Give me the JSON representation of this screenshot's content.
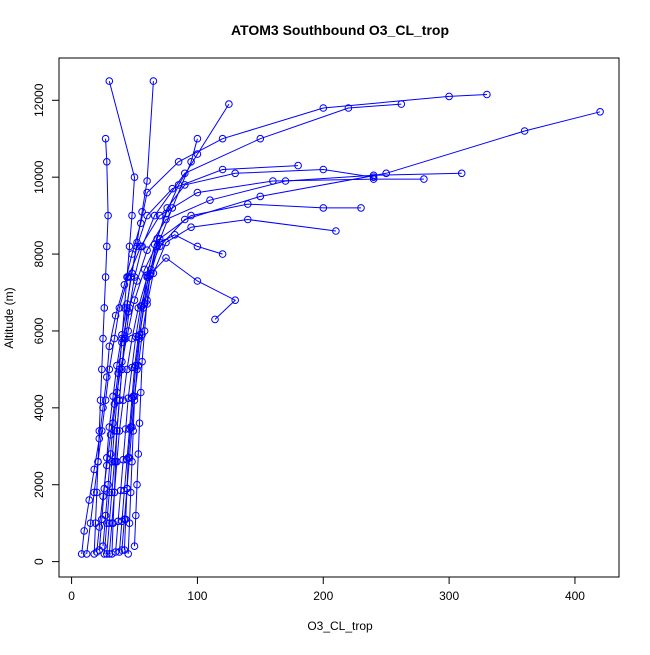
{
  "chart_data": {
    "type": "line",
    "title": "ATOM3 Southbound O3_CL_trop",
    "xlabel": "O3_CL_trop",
    "ylabel": "Altitude (m)",
    "xlim": [
      -10,
      435
    ],
    "ylim": [
      -400,
      13100
    ],
    "x_ticks": [
      0,
      100,
      200,
      300,
      400
    ],
    "y_ticks": [
      0,
      2000,
      4000,
      6000,
      8000,
      10000,
      12000
    ],
    "x_tick_labels": [
      "0",
      "100",
      "200",
      "300",
      "400"
    ],
    "y_tick_labels": [
      "0",
      "2000",
      "4000",
      "6000",
      "8000",
      "10000",
      "12000"
    ],
    "grid": false,
    "legend": "none",
    "series_color": "#0000ff",
    "series": [
      {
        "x": [
          8,
          10,
          14,
          18,
          22,
          25,
          28,
          30,
          35,
          42,
          48,
          55,
          60,
          85,
          120,
          200,
          300,
          330
        ],
        "y": [
          200,
          800,
          1600,
          2400,
          3200,
          4000,
          4800,
          5600,
          6400,
          7200,
          8000,
          8800,
          9600,
          10400,
          11000,
          11800,
          12100,
          12150
        ]
      },
      {
        "x": [
          20,
          22,
          25,
          28,
          31,
          34,
          37,
          40,
          45,
          52,
          60,
          75,
          110,
          170,
          240,
          310
        ],
        "y": [
          250,
          900,
          1700,
          2500,
          3300,
          4100,
          4900,
          5700,
          6500,
          7300,
          8100,
          8900,
          9400,
          9900,
          10050,
          10100
        ]
      },
      {
        "x": [
          30,
          32,
          34,
          36,
          38,
          41,
          44,
          48,
          53,
          60,
          70,
          90,
          150,
          250,
          360,
          420
        ],
        "y": [
          200,
          1000,
          1800,
          2600,
          3400,
          4200,
          5000,
          5800,
          6600,
          7400,
          8200,
          8900,
          9500,
          10100,
          11200,
          11700
        ]
      },
      {
        "x": [
          40,
          42,
          44,
          46,
          48,
          50,
          53,
          56,
          60,
          65,
          75,
          95,
          140,
          210
        ],
        "y": [
          300,
          1100,
          1900,
          2700,
          3500,
          4300,
          5100,
          5900,
          6700,
          7500,
          8300,
          8700,
          8900,
          8600
        ]
      },
      {
        "x": [
          25,
          27,
          29,
          31,
          33,
          36,
          40,
          45,
          50,
          58,
          70,
          95,
          140,
          200,
          230
        ],
        "y": [
          400,
          1200,
          2000,
          2800,
          3600,
          4400,
          5200,
          6000,
          6800,
          7600,
          8400,
          9000,
          9300,
          9200,
          9200
        ]
      },
      {
        "x": [
          12,
          15,
          18,
          21,
          24,
          27,
          30,
          34,
          38,
          45,
          55,
          70,
          100,
          160,
          240,
          280
        ],
        "y": [
          200,
          1000,
          1800,
          2600,
          3400,
          4200,
          5000,
          5800,
          6600,
          7400,
          8200,
          9000,
          9600,
          9900,
          9950,
          9950
        ]
      },
      {
        "x": [
          35,
          37,
          39,
          41,
          43,
          45,
          48,
          51,
          55,
          62,
          75,
          100,
          130,
          114
        ],
        "y": [
          250,
          1050,
          1850,
          2650,
          3450,
          4250,
          5050,
          5850,
          6650,
          7450,
          7900,
          7300,
          6800,
          6300
        ]
      },
      {
        "x": [
          28,
          30,
          32,
          34,
          36,
          38,
          40,
          43,
          46,
          50,
          56,
          66,
          90,
          150,
          220,
          262
        ],
        "y": [
          200,
          1000,
          1800,
          2600,
          3400,
          4200,
          5000,
          5800,
          6600,
          7400,
          8200,
          9000,
          10100,
          11000,
          11800,
          11900
        ]
      },
      {
        "x": [
          45,
          46,
          47,
          48,
          49,
          50,
          52,
          54,
          57,
          61,
          68,
          80,
          95,
          100
        ],
        "y": [
          200,
          1000,
          1800,
          2600,
          3400,
          4200,
          5000,
          5800,
          6600,
          7400,
          8200,
          9200,
          10400,
          11000
        ]
      },
      {
        "x": [
          22,
          24,
          26,
          28,
          30,
          33,
          36,
          40,
          44,
          48,
          52,
          56,
          60,
          65
        ],
        "y": [
          300,
          1100,
          1900,
          2700,
          3500,
          4300,
          5100,
          5900,
          6700,
          7500,
          8300,
          9100,
          9900,
          12500
        ]
      },
      {
        "x": [
          32,
          33,
          34,
          35,
          36,
          38,
          40,
          42,
          44,
          47,
          52,
          60,
          80,
          120,
          180
        ],
        "y": [
          200,
          1000,
          1800,
          2600,
          3400,
          4200,
          5000,
          5800,
          6600,
          7400,
          8200,
          9000,
          9700,
          10200,
          10300
        ]
      },
      {
        "x": [
          50,
          51,
          52,
          53,
          54,
          55,
          56,
          58,
          60,
          63,
          68,
          76,
          90,
          130,
          200,
          240
        ],
        "y": [
          400,
          1200,
          2000,
          2800,
          3600,
          4400,
          5200,
          6000,
          6800,
          7600,
          8400,
          9200,
          9800,
          10100,
          10200,
          10000
        ]
      },
      {
        "x": [
          18,
          19,
          20,
          21,
          22,
          23,
          24,
          25,
          26,
          27,
          28,
          29,
          28,
          27
        ],
        "y": [
          200,
          1000,
          1800,
          2600,
          3400,
          4200,
          5000,
          5800,
          6600,
          7400,
          8200,
          9000,
          10400,
          11000
        ]
      },
      {
        "x": [
          38,
          40,
          42,
          44,
          46,
          48,
          50,
          53,
          56,
          60,
          66,
          75,
          85,
          100,
          125
        ],
        "y": [
          250,
          1050,
          1850,
          2650,
          3450,
          4250,
          5050,
          5850,
          6650,
          7450,
          8250,
          9050,
          9800,
          10600,
          11900
        ]
      },
      {
        "x": [
          42,
          43,
          44,
          45,
          47,
          49,
          51,
          54,
          58,
          63,
          70,
          82,
          100,
          120
        ],
        "y": [
          300,
          1100,
          1900,
          2700,
          3500,
          4300,
          5100,
          5900,
          6700,
          7500,
          8300,
          8500,
          8200,
          8000
        ]
      },
      {
        "x": [
          26,
          28,
          30,
          32,
          34,
          36,
          38,
          40,
          42,
          44,
          46,
          48,
          50,
          30
        ],
        "y": [
          200,
          1000,
          1800,
          2600,
          3400,
          4200,
          5000,
          5800,
          6600,
          7400,
          8200,
          9000,
          10000,
          12500
        ]
      }
    ]
  }
}
